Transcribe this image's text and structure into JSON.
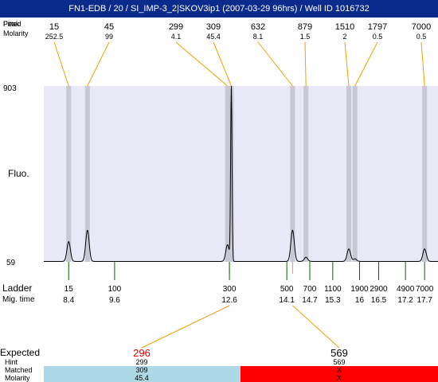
{
  "title": "FN1-EDB / 20 / SI_IMP-3_2|SKOV3ip1 (2007-03-29 96hrs) / Well ID 1016732",
  "labels": {
    "peak_row_top": "Fitted",
    "peak_row": "Peak",
    "molarity_row": "Molarity",
    "y_axis": "Fluo.",
    "ladder": "Ladder",
    "mig_time": "Mig. time",
    "expected": "Expected",
    "hint": "Hint",
    "matched": "Matched",
    "molarity_bottom": "Molarity"
  },
  "colors": {
    "title_bg": "#0a2a8c",
    "plot_bg": "#e8e8f6",
    "peak_band": "#c8c8d4",
    "trace": "#000000",
    "connector": "#f0a000",
    "ladder_tick": "#006600",
    "expected_hint": "#e00000",
    "matched_ok": "#add8e6",
    "matched_missing": "#ff0000"
  },
  "chart_data": {
    "type": "line",
    "title": "FN1-EDB / 20 / SI_IMP-3_2|SKOV3ip1 (2007-03-29 96hrs) / Well ID 1016732",
    "ylabel": "Fluo.",
    "ylim": [
      59,
      903
    ],
    "ytick_labels": [
      "903",
      "59"
    ],
    "ladder_marker_labels": [
      "Ladder",
      "Mig. time"
    ],
    "peaks": [
      {
        "size": "15",
        "molarity": "252.5",
        "mig_time": 8.4,
        "height": 95
      },
      {
        "size": "45",
        "molarity": "99",
        "mig_time": 8.89,
        "height": 150
      },
      {
        "size": "299",
        "molarity": "4.1",
        "mig_time": 12.55,
        "height": 80
      },
      {
        "size": "309",
        "molarity": "45.4",
        "mig_time": 12.65,
        "height": 843
      },
      {
        "size": "632",
        "molarity": "8.1",
        "mig_time": 14.25,
        "height": 150
      },
      {
        "size": "879",
        "molarity": "1.5",
        "mig_time": 14.6,
        "height": 20
      },
      {
        "size": "1510",
        "molarity": "2",
        "mig_time": 15.72,
        "height": 60
      },
      {
        "size": "1797",
        "molarity": "0.5",
        "mig_time": 15.88,
        "height": 12
      },
      {
        "size": "7000",
        "molarity": "0.5",
        "mig_time": 17.7,
        "height": 60
      }
    ],
    "ladder": [
      {
        "size": "15",
        "mig_time": "8.4",
        "t": 8.4
      },
      {
        "size": "100",
        "mig_time": "9.6",
        "t": 9.6
      },
      {
        "size": "300",
        "mig_time": "12.6",
        "t": 12.6
      },
      {
        "size": "500",
        "mig_time": "14.1",
        "t": 14.1
      },
      {
        "size": "700",
        "mig_time": "14.7",
        "t": 14.7
      },
      {
        "size": "1100",
        "mig_time": "15.3",
        "t": 15.3
      },
      {
        "size": "1900",
        "mig_time": "16",
        "t": 16.0
      },
      {
        "size": "2900",
        "mig_time": "16.5",
        "t": 16.5
      },
      {
        "size": "4900",
        "mig_time": "17.2",
        "t": 17.2
      },
      {
        "size": "7000",
        "mig_time": "17.7",
        "t": 17.7
      }
    ],
    "expected": [
      {
        "expected": "296",
        "hint": "299",
        "matched": "309",
        "molarity": "45.4",
        "mig_time": 12.6,
        "ladder_mig_time": 12.6,
        "status": "matched"
      },
      {
        "expected": "569",
        "hint": "569",
        "matched": "X",
        "molarity": "X",
        "mig_time": 14.25,
        "ladder_mig_time": 14.25,
        "status": "missing"
      }
    ]
  }
}
